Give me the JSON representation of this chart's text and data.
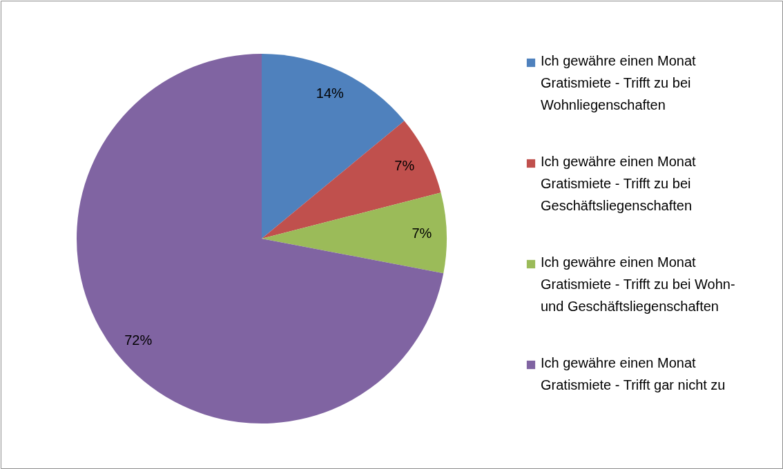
{
  "chart_data": {
    "type": "pie",
    "categories": [
      "Ich gewähre einen Monat Gratismiete - Trifft zu bei Wohnliegenschaften",
      "Ich gewähre einen Monat Gratismiete - Trifft zu bei Geschäftsliegenschaften",
      "Ich gewähre einen Monat Gratismiete - Trifft zu bei Wohn- und Geschäftsliegenschaften",
      "Ich gewähre einen Monat Gratismiete - Trifft gar nicht zu"
    ],
    "values": [
      14,
      7,
      7,
      72
    ],
    "value_labels": [
      "14%",
      "7%",
      "7%",
      "72%"
    ],
    "colors": [
      "#4f81bd",
      "#c0504d",
      "#9bbb59",
      "#8064a2"
    ],
    "legend": "right"
  }
}
